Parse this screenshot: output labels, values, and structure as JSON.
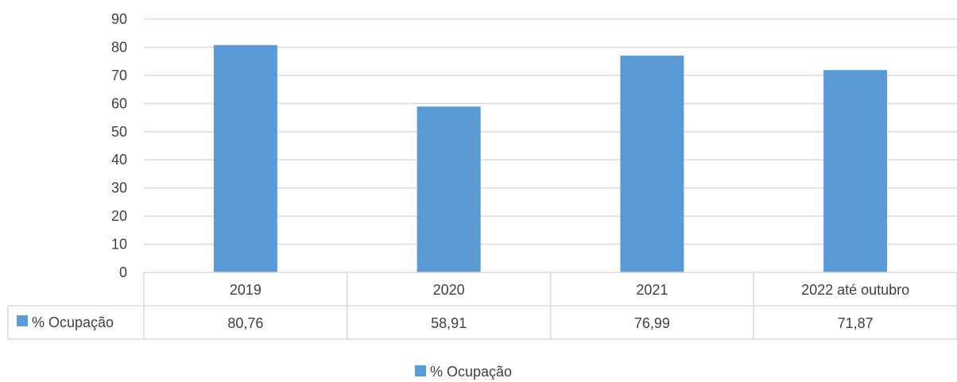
{
  "chart_data": {
    "type": "bar",
    "categories": [
      "2019",
      "2020",
      "2021",
      "2022 até outubro"
    ],
    "series": [
      {
        "name": "% Ocupação",
        "values": [
          80.76,
          58.91,
          76.99,
          71.87
        ]
      }
    ],
    "data_table": {
      "row_label": "% Ocupação",
      "cells": [
        "80,76",
        "58,91",
        "76,99",
        "71,87"
      ]
    },
    "yticks": [
      0,
      10,
      20,
      30,
      40,
      50,
      60,
      70,
      80,
      90
    ],
    "ylim": [
      0,
      90
    ],
    "grid": true,
    "legend": {
      "position": "bottom",
      "label": "% Ocupação"
    },
    "colors": {
      "bar": "#5B9BD5",
      "grid": "#D9D9D9",
      "text": "#404040"
    }
  }
}
